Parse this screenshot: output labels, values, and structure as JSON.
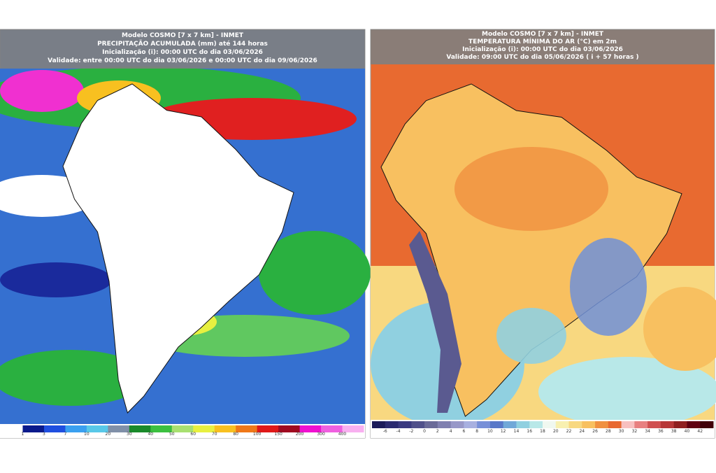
{
  "panels": [
    {
      "header": [
        "Modelo COSMO [7 x 7 km] - INMET",
        "PRECIPITAÇÃO ACUMULADA (mm) até 144 horas",
        "Inicialização (i): 00:00 UTC do dia 03/06/2026",
        "Validade: entre 00:00 UTC do dia 03/06/2026 e 00:00 UTC do dia 09/06/2026"
      ],
      "colorbar": {
        "labels": [
          1,
          3,
          7,
          10,
          20,
          30,
          40,
          50,
          60,
          70,
          80,
          100,
          150,
          200,
          300,
          400
        ],
        "colors": [
          "#ffffff",
          "#0a1a8c",
          "#1f4fe0",
          "#3aa0f0",
          "#58c8e8",
          "#8090a8",
          "#1a8a2a",
          "#3cc040",
          "#a8e070",
          "#e8f040",
          "#f8c020",
          "#f07818",
          "#e01818",
          "#a00a20",
          "#f010d0",
          "#f060e0",
          "#f8b0f0"
        ]
      }
    },
    {
      "header": [
        "Modelo COSMO [7 x 7 km] - INMET",
        "TEMPERATURA MÍNIMA DO AR (°C) em 2m",
        "Inicialização (i): 00:00 UTC do dia 03/06/2026",
        "Validade: 09:00 UTC do dia 05/06/2026 ( i + 57 horas )"
      ],
      "colorbar": {
        "labels": [
          -6,
          -4,
          -2,
          0,
          2,
          4,
          6,
          8,
          10,
          12,
          14,
          16,
          18,
          20,
          22,
          24,
          26,
          28,
          30,
          32,
          34,
          36,
          38,
          40,
          42
        ],
        "colors": [
          "#1a1a5a",
          "#2a2a70",
          "#3a3a80",
          "#50508a",
          "#6a6a98",
          "#8080b0",
          "#9898c8",
          "#a8b0e0",
          "#7890d8",
          "#5878c8",
          "#70a8d8",
          "#90d0e0",
          "#b8e8e8",
          "#f0f8f0",
          "#f8f0b0",
          "#f8d880",
          "#f8c060",
          "#f09040",
          "#e86830",
          "#f8c0c0",
          "#e88080",
          "#d05050",
          "#b83838",
          "#902020",
          "#600010",
          "#400008"
        ]
      }
    }
  ]
}
